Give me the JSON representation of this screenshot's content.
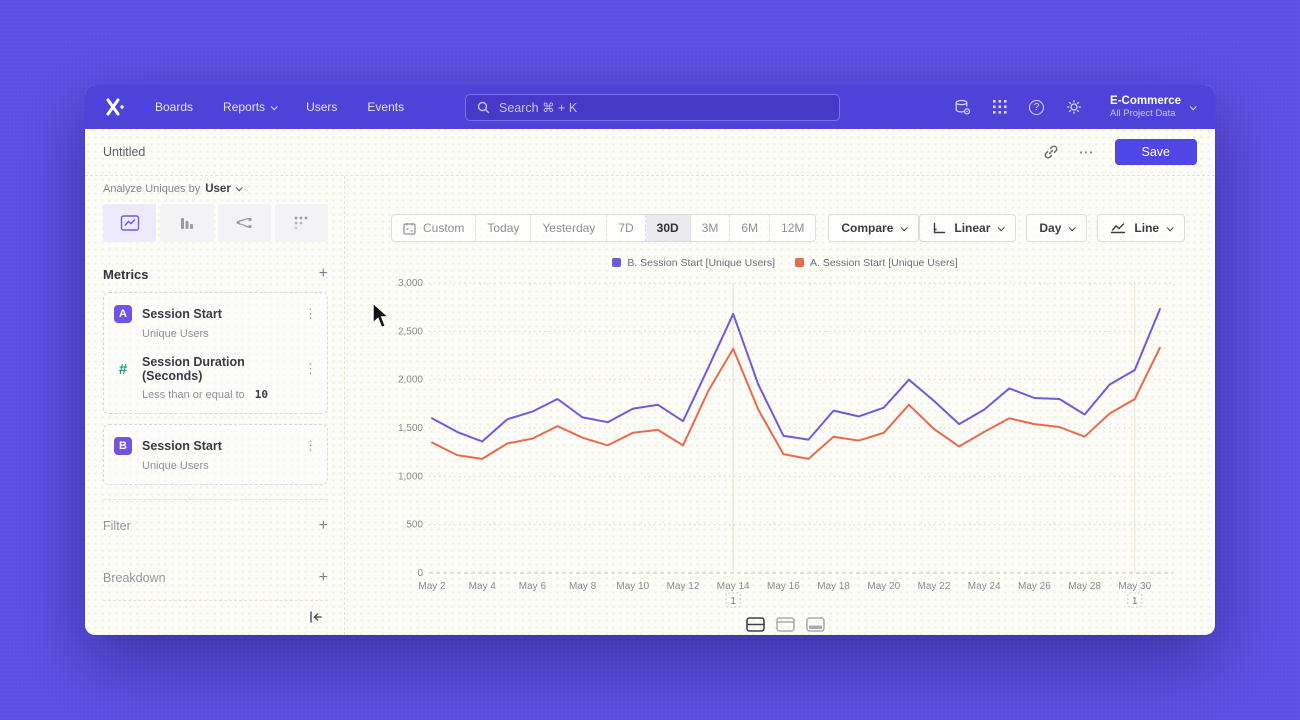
{
  "nav": {
    "items": [
      "Boards",
      "Reports",
      "Users",
      "Events"
    ],
    "search_placeholder": "Search  ⌘ + K",
    "project_name": "E-Commerce",
    "project_scope": "All Project Data"
  },
  "toolbar": {
    "title": "Untitled",
    "more_label": "⋯",
    "save_label": "Save"
  },
  "sidebar": {
    "analyze_label": "Analyze Uniques by",
    "analyze_value": "User",
    "metrics_title": "Metrics",
    "metrics": [
      {
        "badge": "A",
        "title": "Session Start",
        "subtitle": "Unique Users"
      },
      {
        "badge": "#",
        "title": "Session Duration (Seconds)",
        "condition_label": "Less than or equal to",
        "condition_value": "10"
      },
      {
        "badge": "B",
        "title": "Session Start",
        "subtitle": "Unique Users"
      }
    ],
    "filter_label": "Filter",
    "breakdown_label": "Breakdown"
  },
  "controls": {
    "date_ranges": [
      "Custom",
      "Today",
      "Yesterday",
      "7D",
      "30D",
      "3M",
      "6M",
      "12M"
    ],
    "selected_range": "30D",
    "compare_label": "Compare",
    "scale_label": "Linear",
    "granularity_label": "Day",
    "chart_type_label": "Line"
  },
  "chart_data": {
    "type": "line",
    "title": "",
    "xlabel": "",
    "ylabel": "",
    "ylim": [
      0,
      3000
    ],
    "yticks": [
      0,
      500,
      1000,
      1500,
      2000,
      2500,
      3000
    ],
    "grid": "horizontal-dotted",
    "legend_position": "top-center",
    "x": [
      "May 2",
      "May 3",
      "May 4",
      "May 5",
      "May 6",
      "May 7",
      "May 8",
      "May 9",
      "May 10",
      "May 11",
      "May 12",
      "May 13",
      "May 14",
      "May 15",
      "May 16",
      "May 17",
      "May 18",
      "May 19",
      "May 20",
      "May 21",
      "May 22",
      "May 23",
      "May 24",
      "May 25",
      "May 26",
      "May 27",
      "May 28",
      "May 29",
      "May 30",
      "May 31"
    ],
    "x_tick_every": 2,
    "series": [
      {
        "name": "B. Session Start [Unique Users]",
        "color": "#6a5ce0",
        "values": [
          1600,
          1460,
          1360,
          1590,
          1670,
          1800,
          1610,
          1560,
          1700,
          1740,
          1570,
          2120,
          2680,
          1950,
          1420,
          1380,
          1680,
          1620,
          1710,
          2000,
          1780,
          1540,
          1690,
          1910,
          1810,
          1800,
          1640,
          1950,
          2100,
          2730
        ]
      },
      {
        "name": "A. Session Start [Unique Users]",
        "color": "#e96a4d",
        "values": [
          1350,
          1220,
          1180,
          1340,
          1390,
          1520,
          1400,
          1320,
          1450,
          1480,
          1320,
          1880,
          2320,
          1690,
          1230,
          1180,
          1410,
          1370,
          1450,
          1740,
          1490,
          1310,
          1460,
          1600,
          1540,
          1510,
          1410,
          1650,
          1800,
          2330
        ]
      }
    ],
    "annotations": [
      {
        "x": "May 14",
        "label": "1"
      },
      {
        "x": "May 30",
        "label": "1"
      }
    ]
  }
}
